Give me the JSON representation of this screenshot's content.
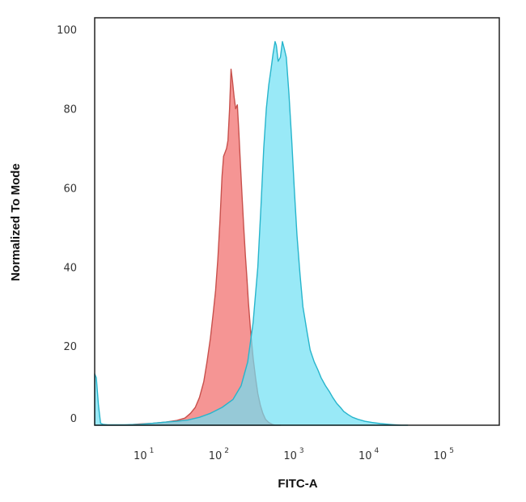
{
  "chart_data": {
    "type": "area",
    "title": "",
    "xlabel": "FITC-A",
    "ylabel": "Normalized To Mode",
    "x_scale": "log",
    "xlim": [
      2,
      500000
    ],
    "ylim": [
      0,
      103
    ],
    "grid": false,
    "legend": "none",
    "x_ticks": [
      {
        "base": "10",
        "exp": "1",
        "value": 10
      },
      {
        "base": "10",
        "exp": "2",
        "value": 100
      },
      {
        "base": "10",
        "exp": "3",
        "value": 1000
      },
      {
        "base": "10",
        "exp": "4",
        "value": 10000
      },
      {
        "base": "10",
        "exp": "5",
        "value": 100000
      }
    ],
    "y_ticks": [
      "0",
      "20",
      "40",
      "60",
      "80",
      "100"
    ],
    "series": [
      {
        "fill": "#f48a88",
        "stroke": "#c8504c",
        "x": [
          2,
          3,
          5,
          8,
          12,
          18,
          25,
          32,
          38,
          44,
          50,
          57,
          63,
          70,
          76,
          82,
          88,
          94,
          100,
          105,
          110,
          115,
          120,
          126,
          132,
          138,
          145,
          152,
          160,
          168,
          176,
          185,
          195,
          205,
          215,
          225,
          240,
          260,
          280,
          300,
          325,
          350,
          380,
          420,
          470,
          520,
          600
        ],
        "y": [
          0,
          0,
          0,
          0.3,
          0.5,
          0.8,
          1.2,
          1.8,
          3,
          4.5,
          7,
          11,
          16,
          22,
          28,
          34,
          42,
          52,
          63,
          68,
          69,
          70,
          72,
          80,
          90,
          87,
          83,
          80,
          81,
          74,
          66,
          58,
          50,
          43,
          37,
          31,
          24,
          17,
          12,
          8,
          5,
          3,
          1.5,
          0.7,
          0.2,
          0,
          0
        ]
      },
      {
        "fill": "#6ddff4",
        "stroke": "#27b5cc",
        "x": [
          2,
          2.1,
          2.25,
          2.4,
          2.6,
          3,
          5,
          8,
          12,
          18,
          25,
          35,
          50,
          70,
          100,
          140,
          180,
          220,
          260,
          300,
          330,
          360,
          390,
          420,
          450,
          480,
          510,
          530,
          560,
          600,
          640,
          680,
          720,
          780,
          850,
          920,
          1000,
          1100,
          1200,
          1350,
          1500,
          1700,
          1900,
          2100,
          2400,
          2700,
          3000,
          3400,
          3800,
          4200,
          4800,
          5500,
          6500,
          8000,
          10000,
          13000,
          17000,
          20000,
          25000,
          30000
        ],
        "y": [
          13,
          12,
          5,
          0.5,
          0.2,
          0.1,
          0.1,
          0.2,
          0.5,
          0.8,
          1,
          1.3,
          2,
          3,
          4.5,
          6.5,
          10,
          16,
          26,
          40,
          55,
          70,
          80,
          86,
          90,
          94,
          97,
          96,
          92,
          93,
          97,
          95,
          93,
          84,
          72,
          60,
          48,
          38,
          30,
          24,
          19,
          16,
          14,
          12,
          10,
          8.5,
          7,
          5.5,
          4.5,
          3.5,
          2.7,
          2,
          1.5,
          1,
          0.7,
          0.4,
          0.2,
          0.1,
          0,
          0
        ]
      }
    ]
  }
}
